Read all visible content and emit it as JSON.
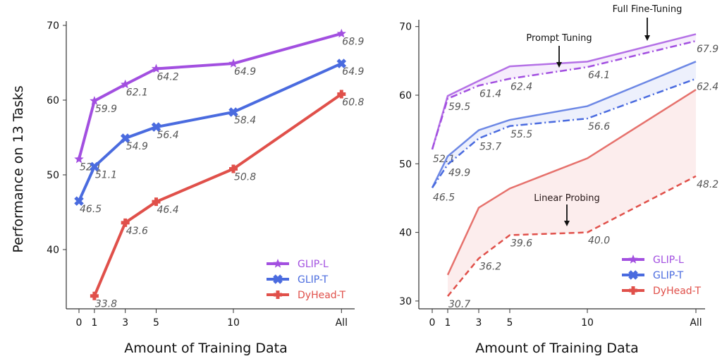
{
  "colors": {
    "GLIP-L": "#a24fe0",
    "GLIP-T": "#4a6bdf",
    "DyHead-T": "#e0504a"
  },
  "chart_data": [
    {
      "type": "line",
      "panel": "left",
      "xlabel": "Amount of Training Data",
      "ylabel": "Performance on 13 Tasks",
      "categories": [
        "0",
        "1",
        "3",
        "5",
        "10",
        "All"
      ],
      "yticks": [
        40,
        50,
        60,
        70
      ],
      "ylim": [
        32,
        70.7
      ],
      "grid": false,
      "legend": "bottom-right",
      "series": [
        {
          "name": "GLIP-L",
          "marker": "star",
          "values": [
            52.1,
            59.9,
            62.1,
            64.2,
            64.9,
            68.9
          ]
        },
        {
          "name": "GLIP-T",
          "marker": "x",
          "values": [
            46.5,
            51.1,
            54.9,
            56.4,
            58.4,
            64.9
          ]
        },
        {
          "name": "DyHead-T",
          "marker": "plus",
          "values": [
            null,
            33.8,
            43.6,
            46.4,
            50.8,
            60.8
          ]
        }
      ]
    },
    {
      "type": "line",
      "panel": "right",
      "xlabel": "Amount of Training Data",
      "categories": [
        "0",
        "1",
        "3",
        "5",
        "10",
        "All"
      ],
      "yticks": [
        30,
        40,
        50,
        60,
        70
      ],
      "ylim": [
        28.8,
        70.8
      ],
      "grid": false,
      "legend": "bottom-right",
      "annotations": [
        "Full Fine-Tuning",
        "Prompt Tuning",
        "Linear Probing"
      ],
      "series": [
        {
          "name": "GLIP-L",
          "style": "solid",
          "values": [
            52.1,
            59.9,
            62.1,
            64.2,
            64.9,
            68.9
          ]
        },
        {
          "name": "GLIP-L",
          "style": "dashdot",
          "values": [
            52.1,
            59.5,
            61.4,
            62.4,
            64.1,
            67.9
          ]
        },
        {
          "name": "GLIP-T",
          "style": "solid",
          "values": [
            46.5,
            51.1,
            54.9,
            56.4,
            58.4,
            64.9
          ]
        },
        {
          "name": "GLIP-T",
          "style": "dashdot",
          "values": [
            46.5,
            49.9,
            53.7,
            55.5,
            56.6,
            62.4
          ]
        },
        {
          "name": "DyHead-T",
          "style": "solid",
          "values": [
            null,
            33.8,
            43.6,
            46.4,
            50.8,
            60.8
          ]
        },
        {
          "name": "DyHead-T",
          "style": "dashed",
          "values": [
            null,
            30.7,
            36.2,
            39.6,
            40.0,
            48.2
          ]
        }
      ]
    }
  ]
}
